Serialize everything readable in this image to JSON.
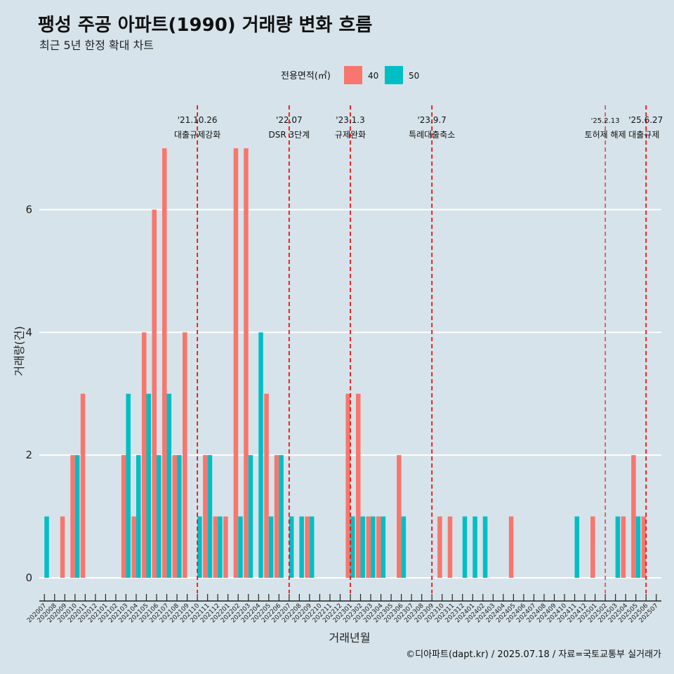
{
  "chart_data": {
    "type": "bar",
    "title": "팽성 주공 아파트(1990) 거래량 변화 흐름",
    "subtitle": "최근 5년 한정 확대 차트",
    "xlabel": "거래년월",
    "ylabel": "거래량(건)",
    "ylim": [
      0,
      7
    ],
    "yticks": [
      0,
      2,
      4,
      6
    ],
    "grid": "horizontal",
    "legend": {
      "title": "전용면적(㎡)",
      "position": "top"
    },
    "caption": "©디아파트(dapt.kr) / 2025.07.18 / 자료=국토교통부 실거래가",
    "categories": [
      "202007",
      "202008",
      "202009",
      "202010",
      "202011",
      "202012",
      "202101",
      "202102",
      "202103",
      "202104",
      "202105",
      "202106",
      "202107",
      "202108",
      "202109",
      "202110",
      "202111",
      "202112",
      "202201",
      "202202",
      "202203",
      "202204",
      "202205",
      "202206",
      "202207",
      "202208",
      "202209",
      "202210",
      "202211",
      "202212",
      "202301",
      "202302",
      "202303",
      "202304",
      "202305",
      "202306",
      "202307",
      "202308",
      "202309",
      "202310",
      "202311",
      "202312",
      "202401",
      "202402",
      "202403",
      "202404",
      "202405",
      "202406",
      "202407",
      "202408",
      "202409",
      "202410",
      "202411",
      "202412",
      "202501",
      "202502",
      "202503",
      "202504",
      "202505",
      "202506",
      "202507"
    ],
    "series": [
      {
        "name": "40",
        "color": "#F8766D",
        "values": [
          0,
          0,
          1,
          2,
          3,
          0,
          0,
          0,
          2,
          1,
          4,
          6,
          7,
          2,
          4,
          0,
          2,
          1,
          1,
          7,
          7,
          0,
          3,
          2,
          0,
          0,
          1,
          0,
          0,
          0,
          3,
          3,
          1,
          1,
          0,
          2,
          0,
          0,
          0,
          1,
          1,
          0,
          0,
          0,
          0,
          0,
          1,
          0,
          0,
          0,
          0,
          0,
          0,
          0,
          1,
          0,
          0,
          1,
          2,
          1,
          0
        ]
      },
      {
        "name": "50",
        "color": "#00BFC4",
        "values": [
          1,
          0,
          0,
          2,
          0,
          0,
          0,
          0,
          3,
          2,
          3,
          2,
          3,
          2,
          0,
          1,
          2,
          1,
          0,
          1,
          2,
          4,
          1,
          2,
          1,
          1,
          1,
          0,
          0,
          0,
          1,
          1,
          1,
          1,
          0,
          1,
          0,
          0,
          0,
          0,
          0,
          1,
          1,
          1,
          0,
          0,
          0,
          0,
          0,
          0,
          0,
          0,
          1,
          0,
          0,
          0,
          1,
          0,
          1,
          0,
          0
        ]
      }
    ],
    "events": [
      {
        "category": "202110",
        "date": "'21.10.26",
        "label": "대출규제강화"
      },
      {
        "category": "202207",
        "date": "'22.07",
        "label": "DSR 3단계"
      },
      {
        "category": "202301",
        "date": "'23.1.3",
        "label": "규제완화"
      },
      {
        "category": "202309",
        "date": "'23.9.7",
        "label": "특례대출축소"
      },
      {
        "category": "202502",
        "date": "'25.2.13",
        "label": "토허제 해제"
      },
      {
        "category": "202506",
        "date": "'25.6.27",
        "label": "대출규제"
      }
    ]
  }
}
